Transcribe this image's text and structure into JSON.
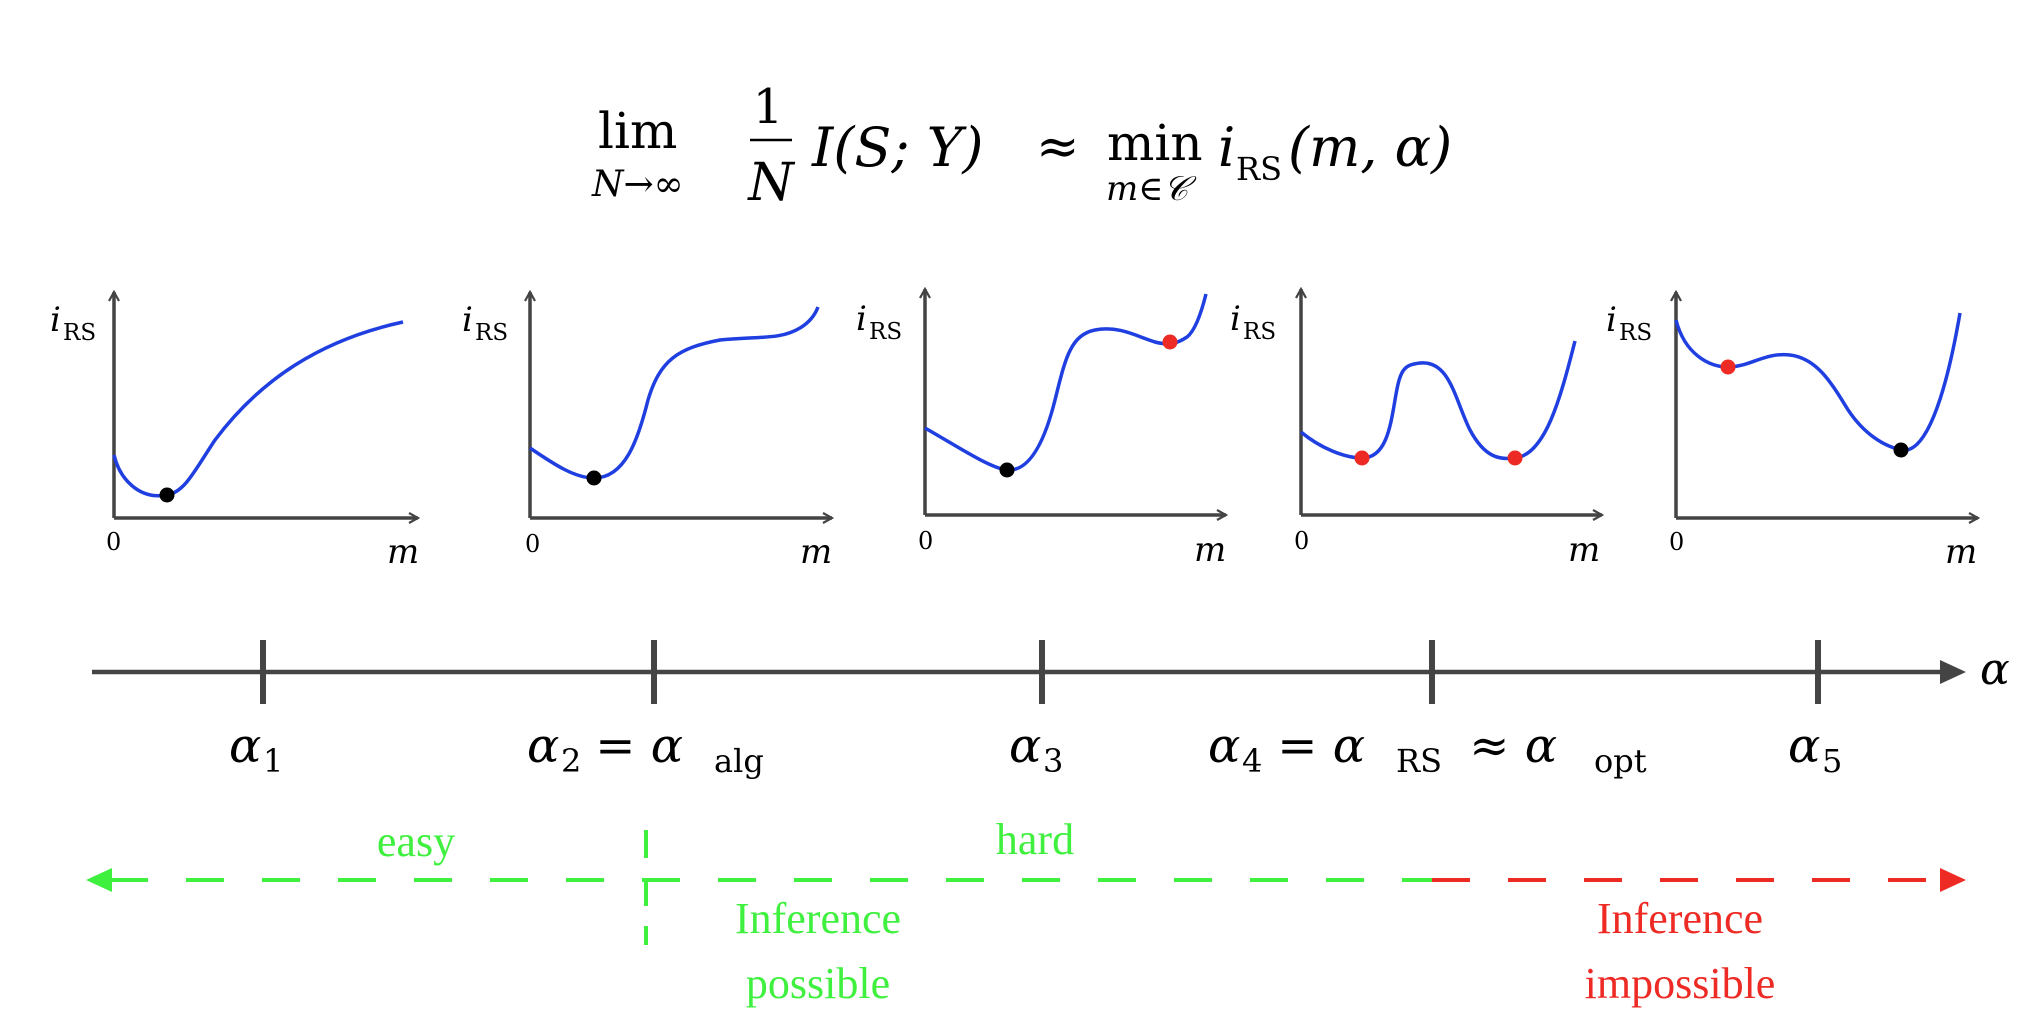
{
  "formula": {
    "lim_word": "lim",
    "lim_sub": "N→∞",
    "frac_num": "1",
    "frac_den": "N",
    "mutual_info": "I(S; Y)",
    "approx": "≈",
    "min_word": "min",
    "min_sub": "m∈𝒞",
    "rs_function": "i",
    "rs_function_sub": "RS",
    "rs_args": "(m, α)"
  },
  "plots": [
    {
      "ylabel": "i",
      "ylabel_sub": "RS",
      "origin_label": "0",
      "xlabel": "m",
      "minima": [
        {
          "kind": "global",
          "color": "#000000"
        }
      ]
    },
    {
      "ylabel": "i",
      "ylabel_sub": "RS",
      "origin_label": "0",
      "xlabel": "m",
      "minima": [
        {
          "kind": "global",
          "color": "#000000"
        }
      ]
    },
    {
      "ylabel": "i",
      "ylabel_sub": "RS",
      "origin_label": "0",
      "xlabel": "m",
      "minima": [
        {
          "kind": "global",
          "color": "#000000"
        },
        {
          "kind": "local",
          "color": "#ee2a24"
        }
      ]
    },
    {
      "ylabel": "i",
      "ylabel_sub": "RS",
      "origin_label": "0",
      "xlabel": "m",
      "minima": [
        {
          "kind": "local",
          "color": "#ee2a24"
        },
        {
          "kind": "local",
          "color": "#ee2a24"
        }
      ]
    },
    {
      "ylabel": "i",
      "ylabel_sub": "RS",
      "origin_label": "0",
      "xlabel": "m",
      "minima": [
        {
          "kind": "local",
          "color": "#ee2a24"
        },
        {
          "kind": "global",
          "color": "#000000"
        }
      ]
    }
  ],
  "axis": {
    "label": "α",
    "ticks": [
      {
        "main": "α",
        "sub": "1",
        "rest": ""
      },
      {
        "main": "α",
        "sub": "2",
        "rest": " = α",
        "rest_sub": "alg"
      },
      {
        "main": "α",
        "sub": "3",
        "rest": ""
      },
      {
        "main": "α",
        "sub": "4",
        "rest": " = α",
        "rest_sub": "RS",
        "rest2": " ≈ α",
        "rest2_sub": "opt"
      },
      {
        "main": "α",
        "sub": "5",
        "rest": ""
      }
    ]
  },
  "regions": {
    "easy": "easy",
    "hard": "hard",
    "possible_line1": "Inference",
    "possible_line2": "possible",
    "impossible_line1": "Inference",
    "impossible_line2": "impossible"
  },
  "colors": {
    "curve": "#1f3fe0",
    "axis": "#444444",
    "possible": "#3ff03f",
    "impossible": "#ee2a24",
    "global_min": "#000000",
    "local_min": "#ee2a24"
  }
}
